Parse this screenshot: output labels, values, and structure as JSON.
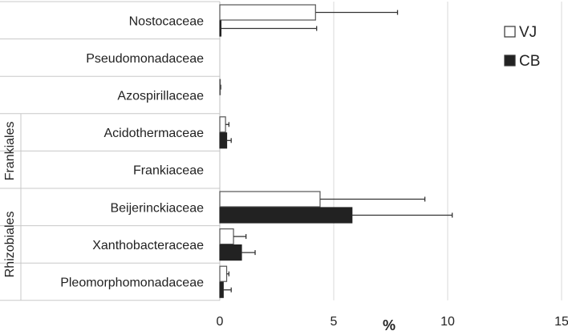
{
  "chart_data": {
    "type": "bar",
    "orientation": "horizontal",
    "title": "",
    "xlabel": "%",
    "ylabel": "",
    "xlim": [
      0,
      15
    ],
    "xticks": [
      "0",
      "5",
      "10",
      "15"
    ],
    "grid": "vertical",
    "legend_position": "right",
    "categories": [
      "Nostocaceae",
      "Pseudomonadaceae",
      "Azospirillaceae",
      "Acidothermaceae",
      "Frankiaceae",
      "Beijerinckiaceae",
      "Xanthobacteraceae",
      "Pleomorphomonadaceae"
    ],
    "groups": [
      {
        "label": "Frankiales",
        "categories": [
          "Acidothermaceae",
          "Frankiaceae"
        ]
      },
      {
        "label": "Rhizobiales",
        "categories": [
          "Beijerinckiaceae",
          "Xanthobacteraceae",
          "Pleomorphomonadaceae"
        ]
      }
    ],
    "series": [
      {
        "name": "VJ",
        "color": "#ffffff",
        "values": [
          4.2,
          0,
          0.02,
          0.25,
          0,
          4.4,
          0.6,
          0.3
        ],
        "errors": [
          3.6,
          0,
          0.02,
          0.15,
          0,
          4.6,
          0.55,
          0.1
        ]
      },
      {
        "name": "CB",
        "color": "#222222",
        "values": [
          0.05,
          0,
          0,
          0.3,
          0,
          5.8,
          0.95,
          0.15
        ],
        "errors": [
          4.2,
          0,
          0,
          0.2,
          0,
          4.4,
          0.6,
          0.35
        ]
      }
    ]
  }
}
